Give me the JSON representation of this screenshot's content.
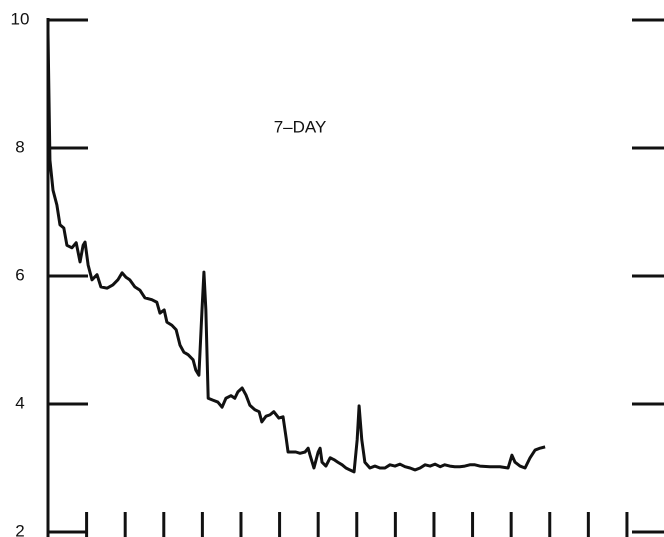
{
  "chart_data": {
    "type": "line",
    "title": "7–DAY",
    "x": [
      0,
      0.05,
      0.13,
      0.23,
      0.31,
      0.41,
      0.49,
      0.62,
      0.73,
      0.83,
      0.91,
      0.96,
      1.04,
      1.14,
      1.27,
      1.37,
      1.53,
      1.68,
      1.81,
      1.92,
      2.02,
      2.12,
      2.25,
      2.38,
      2.51,
      2.69,
      2.82,
      2.9,
      3.01,
      3.08,
      3.21,
      3.32,
      3.42,
      3.52,
      3.63,
      3.76,
      3.83,
      3.91,
      3.99,
      4.04,
      4.09,
      4.15,
      4.27,
      4.4,
      4.51,
      4.61,
      4.74,
      4.84,
      4.92,
      5.03,
      5.13,
      5.23,
      5.36,
      5.47,
      5.54,
      5.65,
      5.75,
      5.85,
      5.98,
      6.09,
      6.17,
      6.22,
      6.32,
      6.42,
      6.53,
      6.66,
      6.74,
      6.79,
      6.89,
      7.0,
      7.05,
      7.1,
      7.2,
      7.31,
      7.41,
      7.51,
      7.62,
      7.72,
      7.82,
      7.93,
      8.01,
      8.06,
      8.13,
      8.21,
      8.34,
      8.47,
      8.6,
      8.73,
      8.86,
      8.99,
      9.12,
      9.25,
      9.38,
      9.51,
      9.64,
      9.77,
      9.9,
      10.03,
      10.16,
      10.28,
      10.41,
      10.54,
      10.67,
      10.8,
      10.93,
      11.06,
      11.19,
      11.45,
      11.71,
      11.92,
      12.02,
      12.1,
      12.23,
      12.36,
      12.49,
      12.62,
      12.75,
      12.88
    ],
    "series": [
      {
        "color": "#111111",
        "values": [
          9.8,
          7.81,
          7.34,
          7.11,
          6.8,
          6.75,
          6.48,
          6.44,
          6.52,
          6.22,
          6.48,
          6.53,
          6.17,
          5.94,
          6.02,
          5.83,
          5.81,
          5.86,
          5.94,
          6.05,
          5.98,
          5.94,
          5.83,
          5.78,
          5.66,
          5.63,
          5.59,
          5.42,
          5.47,
          5.28,
          5.23,
          5.16,
          4.92,
          4.81,
          4.77,
          4.69,
          4.53,
          4.45,
          5.47,
          6.06,
          5.47,
          4.09,
          4.06,
          4.03,
          3.95,
          4.09,
          4.13,
          4.09,
          4.19,
          4.25,
          4.14,
          3.98,
          3.91,
          3.88,
          3.72,
          3.81,
          3.83,
          3.88,
          3.78,
          3.8,
          3.47,
          3.25,
          3.25,
          3.25,
          3.23,
          3.25,
          3.31,
          3.2,
          3.0,
          3.25,
          3.31,
          3.09,
          3.03,
          3.16,
          3.13,
          3.09,
          3.05,
          3.0,
          2.97,
          2.94,
          3.44,
          3.97,
          3.44,
          3.09,
          3.0,
          3.03,
          3.0,
          3.0,
          3.05,
          3.03,
          3.06,
          3.02,
          3.0,
          2.97,
          3.0,
          3.05,
          3.03,
          3.06,
          3.02,
          3.05,
          3.03,
          3.02,
          3.02,
          3.03,
          3.05,
          3.05,
          3.03,
          3.02,
          3.02,
          3.0,
          3.2,
          3.09,
          3.03,
          3.0,
          3.16,
          3.28,
          3.31,
          3.33
        ]
      }
    ],
    "xlim": [
      0,
      15.96
    ],
    "xticks": [
      1,
      2,
      3,
      4,
      5,
      6,
      7,
      8,
      9,
      10,
      11,
      12,
      13,
      14,
      15
    ],
    "ylim": [
      2,
      10
    ],
    "yticks": [
      2,
      4,
      6,
      8,
      10
    ]
  }
}
